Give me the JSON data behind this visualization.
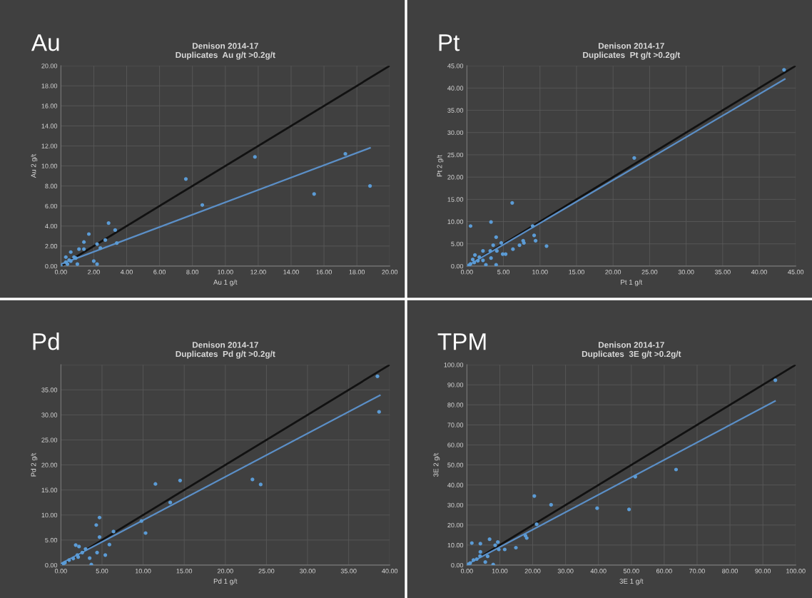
{
  "chart_data": [
    {
      "type": "scatter",
      "title": "Denison 2014-17\nDuplicates  Au g/t >0.2g/t",
      "xlabel": "Au 1 g/t",
      "ylabel": "Au 2 g/t",
      "annotations": [
        "Au"
      ],
      "xlim": [
        0,
        20
      ],
      "ylim": [
        0,
        20
      ],
      "xticks": [
        {
          "value": 0,
          "label": "0.00"
        },
        {
          "value": 2,
          "label": "2.00"
        },
        {
          "value": 4,
          "label": "4.00"
        },
        {
          "value": 6,
          "label": "6.00"
        },
        {
          "value": 8,
          "label": "8.00"
        },
        {
          "value": 10,
          "label": "10.00"
        },
        {
          "value": 12,
          "label": "12.00"
        },
        {
          "value": 14,
          "label": "14.00"
        },
        {
          "value": 16,
          "label": "16.00"
        },
        {
          "value": 18,
          "label": "18.00"
        },
        {
          "value": 20,
          "label": "20.00"
        }
      ],
      "yticks": [
        {
          "value": 0,
          "label": "0.00"
        },
        {
          "value": 2,
          "label": "2.00"
        },
        {
          "value": 4,
          "label": "4.00"
        },
        {
          "value": 6,
          "label": "6.00"
        },
        {
          "value": 8,
          "label": "8.00"
        },
        {
          "value": 10,
          "label": "10.00"
        },
        {
          "value": 12,
          "label": "12.00"
        },
        {
          "value": 14,
          "label": "14.00"
        },
        {
          "value": 16,
          "label": "16.00"
        },
        {
          "value": 18,
          "label": "18.00"
        },
        {
          "value": 20,
          "label": "20.00"
        }
      ],
      "grid": true,
      "series": [
        {
          "type": "line",
          "color": "#111111",
          "x": [
            0,
            20
          ],
          "values": [
            0,
            20
          ]
        },
        {
          "type": "line",
          "color": "#5b8fc7",
          "x": [
            0,
            18.8
          ],
          "values": [
            0.2,
            11.8
          ]
        },
        {
          "marker": "circle",
          "color": "#5b9bd5",
          "x": [
            7.6,
            8.6,
            11.8,
            15.4,
            17.3,
            18.8,
            2.9,
            3.3,
            1.7,
            3.4,
            1.4,
            2.2,
            2.4,
            2.7,
            2.0,
            2.2,
            0.6,
            1.1,
            1.4,
            0.3,
            0.9,
            1.0,
            0.6,
            0.0,
            0.3,
            0.5,
            0.8,
            0.4
          ],
          "values": [
            8.7,
            6.1,
            10.9,
            7.2,
            11.2,
            8.0,
            4.3,
            3.6,
            3.2,
            2.3,
            2.4,
            2.2,
            1.8,
            2.6,
            0.5,
            0.2,
            1.4,
            1.7,
            1.7,
            0.9,
            0.8,
            0.2,
            0.5,
            0.0,
            0.4,
            0.6,
            0.9,
            0.2
          ]
        }
      ]
    },
    {
      "type": "scatter",
      "title": "Denison 2014-17\nDuplicates  Pt g/t >0.2g/t",
      "xlabel": "Pt 1 g/t",
      "ylabel": "Pt 2 g/t",
      "annotations": [
        "Pt"
      ],
      "xlim": [
        0,
        45
      ],
      "ylim": [
        0,
        45
      ],
      "xticks": [
        {
          "value": 0,
          "label": "0.00"
        },
        {
          "value": 5,
          "label": "5.00"
        },
        {
          "value": 10,
          "label": "10.00"
        },
        {
          "value": 15,
          "label": "15.00"
        },
        {
          "value": 20,
          "label": "20.00"
        },
        {
          "value": 25,
          "label": "25.00"
        },
        {
          "value": 30,
          "label": "30.00"
        },
        {
          "value": 35,
          "label": "35.00"
        },
        {
          "value": 40,
          "label": "40.00"
        },
        {
          "value": 45,
          "label": "45.00"
        }
      ],
      "yticks": [
        {
          "value": 0,
          "label": "0.00"
        },
        {
          "value": 5,
          "label": "5.00"
        },
        {
          "value": 10,
          "label": "10.00"
        },
        {
          "value": 15,
          "label": "15.00"
        },
        {
          "value": 20,
          "label": "20.00"
        },
        {
          "value": 25,
          "label": "25.00"
        },
        {
          "value": 30,
          "label": "30.00"
        },
        {
          "value": 35,
          "label": "35.00"
        },
        {
          "value": 40,
          "label": "40.00"
        },
        {
          "value": 45,
          "label": "45.00"
        }
      ],
      "grid": true,
      "series": [
        {
          "type": "line",
          "color": "#111111",
          "x": [
            0,
            45
          ],
          "values": [
            0,
            45
          ]
        },
        {
          "type": "line",
          "color": "#5b8fc7",
          "x": [
            0,
            43.5
          ],
          "values": [
            0,
            42
          ]
        },
        {
          "marker": "circle",
          "color": "#5b9bd5",
          "x": [
            43.4,
            22.9,
            6.2,
            0.5,
            3.3,
            9.0,
            4.0,
            9.2,
            9.4,
            10.9,
            7.7,
            7.8,
            7.2,
            6.3,
            4.7,
            3.6,
            4.1,
            3.2,
            2.2,
            4.9,
            5.3,
            3.3,
            2.2,
            4.0,
            2.6,
            1.1,
            1.7,
            0.5,
            1.0,
            0.3,
            1.5,
            0.8
          ],
          "values": [
            44.1,
            24.3,
            14.2,
            9.0,
            9.9,
            9.0,
            6.5,
            6.9,
            5.7,
            4.5,
            5.7,
            5.2,
            4.7,
            3.8,
            5.2,
            4.7,
            3.4,
            3.4,
            3.4,
            2.7,
            2.7,
            1.8,
            1.3,
            0.3,
            0.3,
            2.5,
            2.0,
            0.5,
            0.8,
            0.2,
            1.2,
            1.5
          ]
        }
      ]
    },
    {
      "type": "scatter",
      "title": "Denison 2014-17\nDuplicates  Pd g/t >0.2g/t",
      "xlabel": "Pd 1 g/t",
      "ylabel": "Pd 2 g/t",
      "annotations": [
        "Pd"
      ],
      "xlim": [
        0,
        40
      ],
      "ylim": [
        0,
        40
      ],
      "xticks": [
        {
          "value": 0,
          "label": "0.00"
        },
        {
          "value": 5,
          "label": "5.00"
        },
        {
          "value": 10,
          "label": "10.00"
        },
        {
          "value": 15,
          "label": "15.00"
        },
        {
          "value": 20,
          "label": "20.00"
        },
        {
          "value": 25,
          "label": "25.00"
        },
        {
          "value": 30,
          "label": "30.00"
        },
        {
          "value": 35,
          "label": "35.00"
        },
        {
          "value": 40,
          "label": "40.00"
        }
      ],
      "yticks": [
        {
          "value": 0,
          "label": "0.00"
        },
        {
          "value": 5,
          "label": "5.00"
        },
        {
          "value": 10,
          "label": "10.00"
        },
        {
          "value": 15,
          "label": "15.00"
        },
        {
          "value": 20,
          "label": "20.00"
        },
        {
          "value": 25,
          "label": "25.00"
        },
        {
          "value": 30,
          "label": "30.00"
        },
        {
          "value": 35,
          "label": "35.00"
        },
        {
          "value": 40,
          "label": null
        }
      ],
      "grid": true,
      "series": [
        {
          "type": "line",
          "color": "#111111",
          "x": [
            0,
            40
          ],
          "values": [
            0,
            40
          ]
        },
        {
          "type": "line",
          "color": "#5b8fc7",
          "x": [
            0,
            38.8
          ],
          "values": [
            0.3,
            33.9
          ]
        },
        {
          "marker": "circle",
          "color": "#5b9bd5",
          "x": [
            38.5,
            38.7,
            11.5,
            14.5,
            23.3,
            24.3,
            13.3,
            9.8,
            10.3,
            4.7,
            4.3,
            6.4,
            4.7,
            5.9,
            4.4,
            5.4,
            3.7,
            3.5,
            1.8,
            2.2,
            2.6,
            3.0,
            2.1,
            0.5,
            1.0,
            1.5,
            0.3,
            2.0
          ],
          "values": [
            37.7,
            30.6,
            16.2,
            16.9,
            17.1,
            16.1,
            12.5,
            8.8,
            6.4,
            9.5,
            8.0,
            6.7,
            5.6,
            4.1,
            2.5,
            2.0,
            0.1,
            1.4,
            4.0,
            3.7,
            2.5,
            3.2,
            1.6,
            0.5,
            1.0,
            1.3,
            0.3,
            2.0
          ]
        }
      ]
    },
    {
      "type": "scatter",
      "title": "Denison 2014-17\nDuplicates  3E g/t >0.2g/t",
      "xlabel": "3E 1 g/t",
      "ylabel": "3E 2 g/t",
      "annotations": [
        "TPM"
      ],
      "xlim": [
        0,
        100
      ],
      "ylim": [
        0,
        100
      ],
      "xticks": [
        {
          "value": 0,
          "label": "0.00"
        },
        {
          "value": 10,
          "label": "10.00"
        },
        {
          "value": 20,
          "label": "20.00"
        },
        {
          "value": 30,
          "label": "30.00"
        },
        {
          "value": 40,
          "label": "40.00"
        },
        {
          "value": 50,
          "label": "50.00"
        },
        {
          "value": 60,
          "label": "60.00"
        },
        {
          "value": 70,
          "label": "70.00"
        },
        {
          "value": 80,
          "label": "80.00"
        },
        {
          "value": 90,
          "label": "90.00"
        },
        {
          "value": 100,
          "label": "100.00"
        }
      ],
      "yticks": [
        {
          "value": 0,
          "label": "0.00"
        },
        {
          "value": 10,
          "label": "10.00"
        },
        {
          "value": 20,
          "label": "20.00"
        },
        {
          "value": 30,
          "label": "30.00"
        },
        {
          "value": 40,
          "label": "40.00"
        },
        {
          "value": 50,
          "label": "50.00"
        },
        {
          "value": 60,
          "label": "60.00"
        },
        {
          "value": 70,
          "label": "70.00"
        },
        {
          "value": 80,
          "label": "80.00"
        },
        {
          "value": 90,
          "label": "90.00"
        },
        {
          "value": 100,
          "label": "100.00"
        }
      ],
      "grid": true,
      "series": [
        {
          "type": "line",
          "color": "#111111",
          "x": [
            0,
            100
          ],
          "values": [
            0,
            100
          ]
        },
        {
          "type": "line",
          "color": "#5b8fc7",
          "x": [
            0,
            93.7
          ],
          "values": [
            0.3,
            81.9
          ]
        },
        {
          "marker": "circle",
          "color": "#5b9bd5",
          "x": [
            93.8,
            51.2,
            63.6,
            20.5,
            25.6,
            39.6,
            49.3,
            21.2,
            17.8,
            18.2,
            14.9,
            11.5,
            9.7,
            1.5,
            4.1,
            6.9,
            9.4,
            8.6,
            8.0,
            5.6,
            4.1,
            6.3,
            1.0,
            2.0,
            3.0,
            0.5,
            4.0
          ],
          "values": [
            92.3,
            44.1,
            47.7,
            34.5,
            30.1,
            28.4,
            27.8,
            20.4,
            14.7,
            13.5,
            8.7,
            7.8,
            7.8,
            11.0,
            10.7,
            12.9,
            11.5,
            9.9,
            0.3,
            1.5,
            6.6,
            4.4,
            1.0,
            2.5,
            3.0,
            0.5,
            4.5
          ]
        }
      ]
    }
  ]
}
